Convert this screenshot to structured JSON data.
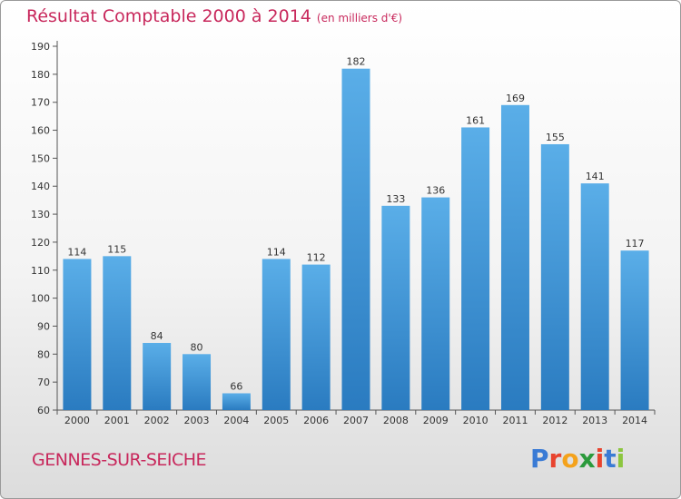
{
  "header": {
    "title": "Résultat Comptable 2000 à 2014",
    "unit": "(en milliers d'€)"
  },
  "footer": {
    "city": "GENNES-SUR-SEICHE",
    "logo_letters": [
      "P",
      "r",
      "o",
      "x",
      "i",
      "t",
      "i"
    ],
    "logo_colors": [
      "#3a7bd5",
      "#e8432e",
      "#f4a21b",
      "#2b9a3c",
      "#e8432e",
      "#3a7bd5",
      "#8cc63f"
    ]
  },
  "colors": {
    "title": "#c8285c",
    "bar_top": "#5aaee8",
    "bar_bottom": "#2a7bc0",
    "axis": "#555555"
  },
  "chart_data": {
    "type": "bar",
    "categories": [
      "2000",
      "2001",
      "2002",
      "2003",
      "2004",
      "2005",
      "2006",
      "2007",
      "2008",
      "2009",
      "2010",
      "2011",
      "2012",
      "2013",
      "2014"
    ],
    "values": [
      114,
      115,
      84,
      80,
      66,
      114,
      112,
      182,
      133,
      136,
      161,
      169,
      155,
      141,
      117
    ],
    "yticks": [
      60,
      70,
      80,
      90,
      100,
      110,
      120,
      130,
      140,
      150,
      160,
      170,
      180,
      190
    ],
    "ylim": [
      60,
      190
    ],
    "grid": false,
    "legend": "none"
  }
}
